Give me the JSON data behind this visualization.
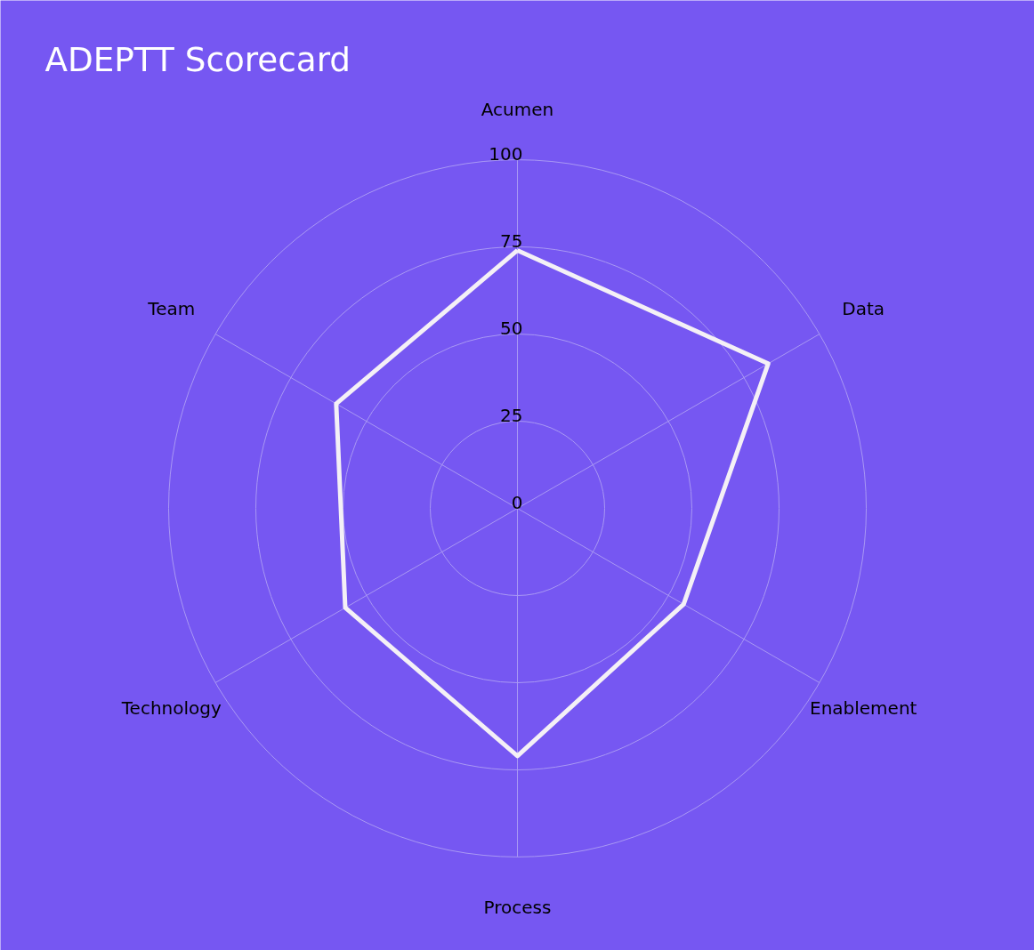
{
  "chart_data": {
    "type": "radar",
    "title": "ADEPTT Scorecard",
    "categories": [
      "Acumen",
      "Data",
      "Enablement",
      "Process",
      "Technology",
      "Team"
    ],
    "series": [
      {
        "color": "#f4f0f6",
        "values": [
          74,
          83,
          55,
          71,
          57,
          60
        ]
      }
    ],
    "ylim": [
      0,
      100
    ],
    "yticks": [
      0,
      25,
      50,
      75,
      100
    ],
    "grid": true,
    "marker": "none",
    "line_style": "solid"
  }
}
